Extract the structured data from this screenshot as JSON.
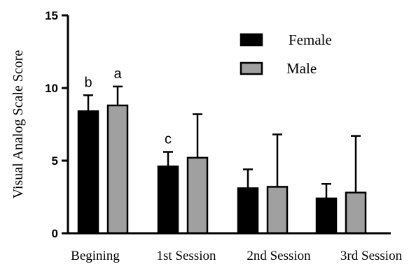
{
  "chart_data": {
    "type": "bar",
    "title": "",
    "xlabel": "",
    "ylabel": "Visual Analog Scale Score",
    "ylim": [
      0,
      15
    ],
    "yticks": [
      0,
      5,
      10,
      15
    ],
    "grid": false,
    "legend_position": "top-right",
    "categories": [
      "Begining",
      "1st Session",
      "2nd Session",
      "3rd Session"
    ],
    "series": [
      {
        "name": "Female",
        "color": "#000000",
        "values": [
          8.4,
          4.6,
          3.1,
          2.4
        ],
        "error": [
          1.1,
          1.0,
          1.3,
          1.0
        ],
        "annotations": [
          "b",
          "c",
          "",
          ""
        ]
      },
      {
        "name": "Male",
        "color": "#a0a0a0",
        "values": [
          8.8,
          5.2,
          3.2,
          2.8
        ],
        "error": [
          1.3,
          3.0,
          3.6,
          3.9
        ],
        "annotations": [
          "a",
          "",
          "",
          ""
        ]
      }
    ]
  }
}
